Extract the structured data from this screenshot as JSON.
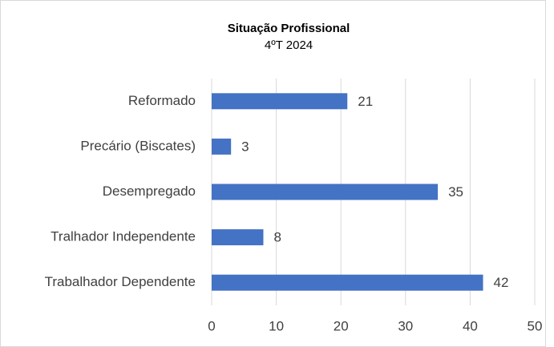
{
  "chart_data": {
    "type": "barh",
    "title": "Situação Profissional",
    "subtitle": "4ºT 2024",
    "categories": [
      "Reformado",
      "Precário (Biscates)",
      "Desempregado",
      "Tralhador Independente",
      "Trabalhador Dependente"
    ],
    "values": [
      21,
      3,
      35,
      8,
      42
    ],
    "color": "#4472c4",
    "xlim": [
      0,
      50
    ],
    "xticks": [
      0,
      10,
      20,
      30,
      40,
      50
    ],
    "grid": true
  }
}
